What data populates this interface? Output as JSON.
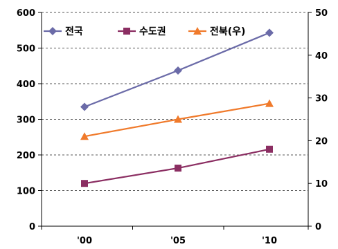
{
  "chart_data": {
    "type": "line",
    "categories": [
      "'00",
      "'05",
      "'10"
    ],
    "y_left": {
      "ticks": [
        "0",
        "100",
        "200",
        "300",
        "400",
        "500",
        "600"
      ],
      "range": [
        0,
        600
      ]
    },
    "y_right": {
      "ticks": [
        "0",
        "10",
        "20",
        "30",
        "40",
        "50"
      ],
      "range": [
        0,
        50
      ]
    },
    "grid": true,
    "legend_position": "top-left",
    "series": [
      {
        "name": "전국",
        "axis": "left",
        "values": [
          335,
          437,
          543
        ],
        "color": "#6b6ba8",
        "marker": "diamond"
      },
      {
        "name": "수도권",
        "axis": "left",
        "values": [
          120,
          163,
          216
        ],
        "color": "#8b2e62",
        "marker": "square"
      },
      {
        "name": "전북(우)",
        "axis": "right",
        "values": [
          21,
          25,
          28.7
        ],
        "color": "#f07a2b",
        "marker": "triangle"
      }
    ]
  }
}
